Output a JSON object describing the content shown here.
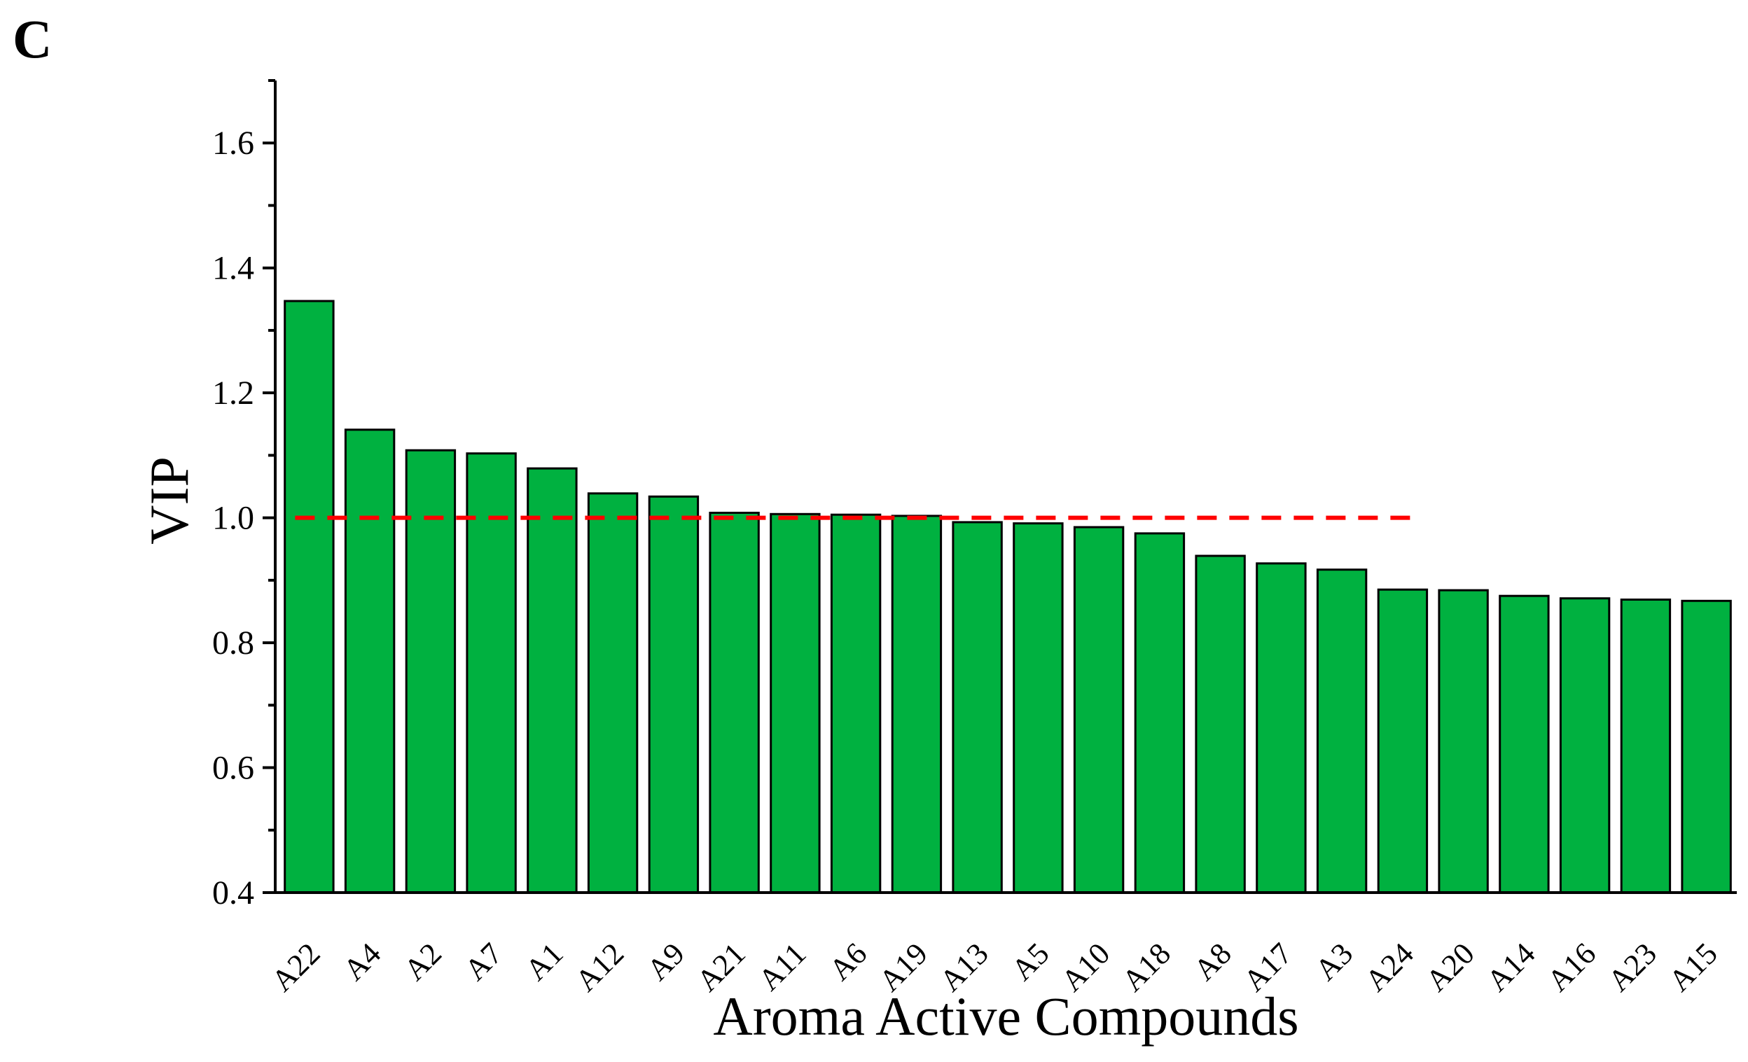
{
  "panel_label": "C",
  "chart_data": {
    "type": "bar",
    "title": "",
    "xlabel": "Aroma Active Compounds",
    "ylabel": "VIP",
    "ylim": [
      0.4,
      1.7
    ],
    "yticks": [
      0.4,
      0.6,
      0.8,
      1.0,
      1.2,
      1.4,
      1.6
    ],
    "ytick_labels": [
      "0.4",
      "0.6",
      "0.8",
      "1.0",
      "1.2",
      "1.4",
      "1.6"
    ],
    "grid": false,
    "legend": "none",
    "categories": [
      "A22",
      "A4",
      "A2",
      "A7",
      "A1",
      "A12",
      "A9",
      "A21",
      "A11",
      "A6",
      "A19",
      "A13",
      "A5",
      "A10",
      "A18",
      "A8",
      "A17",
      "A3",
      "A24",
      "A20",
      "A14",
      "A16",
      "A23",
      "A15"
    ],
    "values": [
      1.347,
      1.141,
      1.108,
      1.103,
      1.079,
      1.039,
      1.034,
      1.008,
      1.006,
      1.005,
      1.003,
      0.993,
      0.991,
      0.985,
      0.975,
      0.939,
      0.927,
      0.917,
      0.885,
      0.884,
      0.875,
      0.871,
      0.869,
      0.867
    ],
    "bar_color": "#00b140",
    "threshold": {
      "value": 1.0,
      "x_from": "A22",
      "x_to": "A3",
      "color": "#ff0000",
      "style": "dashed"
    }
  }
}
